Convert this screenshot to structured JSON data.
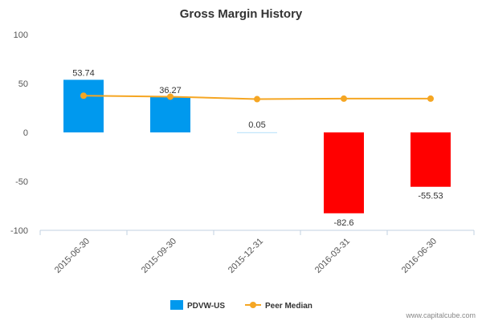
{
  "chart_data": {
    "type": "bar",
    "title": "Gross Margin History",
    "xlabel": "",
    "ylabel": "",
    "ylim": [
      -100,
      100
    ],
    "yticks": [
      100,
      50,
      0,
      -50,
      -100
    ],
    "categories": [
      "2015-06-30",
      "2015-09-30",
      "2015-12-31",
      "2016-03-31",
      "2016-06-30"
    ],
    "series": [
      {
        "name": "PDVW-US",
        "type": "bar",
        "values": [
          53.74,
          36.27,
          0.05,
          -82.6,
          -55.53
        ],
        "labels": [
          "53.74",
          "36.27",
          "0.05",
          "-82.6",
          "-55.53"
        ],
        "color_positive": "#0099ee",
        "color_negative": "#ff0000"
      },
      {
        "name": "Peer Median",
        "type": "line",
        "values": [
          37.5,
          36.5,
          34.0,
          34.5,
          34.5
        ],
        "color": "#f5a623"
      }
    ],
    "grid": false,
    "legend_position": "bottom-center"
  },
  "credit": "www.capitalcube.com"
}
